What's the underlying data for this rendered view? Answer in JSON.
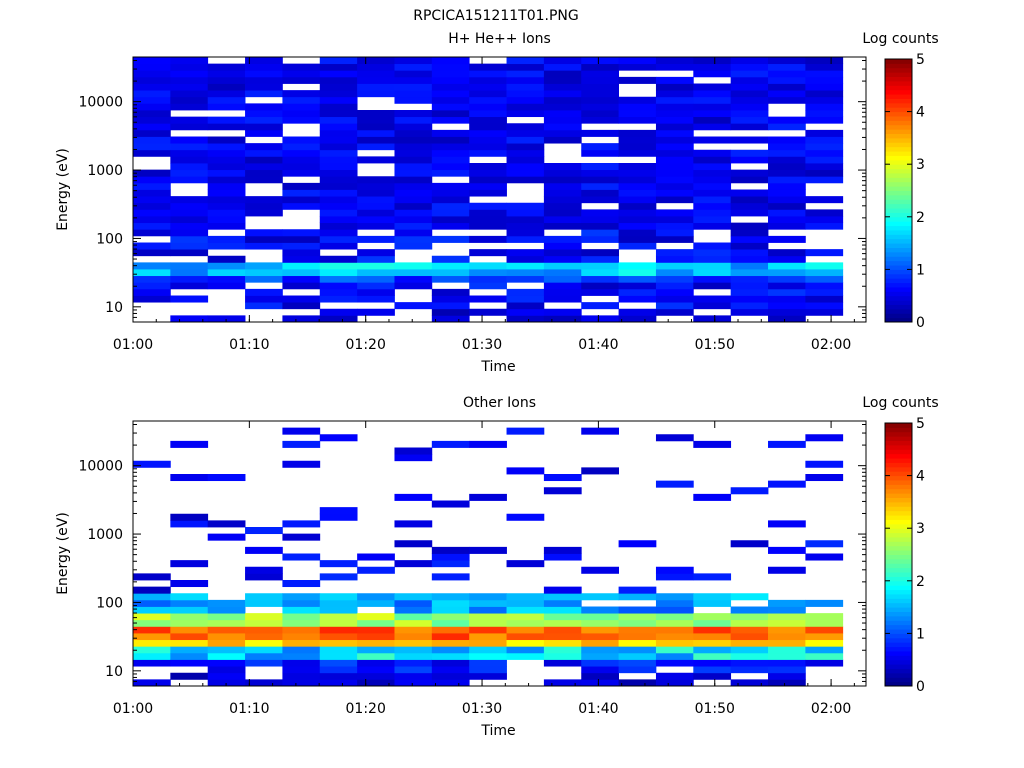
{
  "figure": {
    "title": "RPCICA151211T01.PNG"
  },
  "chart_data": [
    {
      "type": "heatmap",
      "title": "H+ He++ Ions",
      "xlabel": "Time",
      "ylabel": "Energy (eV)",
      "yscale": "log",
      "ylim": [
        6,
        45000
      ],
      "xlim": [
        "01:00",
        "02:03"
      ],
      "x_ticks": [
        "01:00",
        "01:10",
        "01:20",
        "01:30",
        "01:40",
        "01:50",
        "02:00"
      ],
      "y_ticks": [
        "10",
        "100",
        "1000",
        "10000"
      ],
      "colorbar": {
        "label": "Log counts",
        "range": [
          0,
          5
        ],
        "ticks": [
          "0",
          "1",
          "2",
          "3",
          "4",
          "5"
        ]
      },
      "time_bins": 19,
      "energy_bins": 40,
      "energy_edges_eV": [
        6,
        45000
      ],
      "bands": [
        {
          "e_min": 6,
          "e_max": 10,
          "fill": 0.55,
          "level": [
            0.25,
            0.6
          ]
        },
        {
          "e_min": 10,
          "e_max": 22,
          "fill": 0.7,
          "level": [
            0.3,
            0.9
          ]
        },
        {
          "e_min": 22,
          "e_max": 30,
          "fill": 1.0,
          "level": [
            0.6,
            1.2
          ]
        },
        {
          "e_min": 30,
          "e_max": 45,
          "fill": 1.0,
          "level": [
            1.2,
            2.0
          ]
        },
        {
          "e_min": 45,
          "e_max": 150,
          "fill": 0.7,
          "level": [
            0.3,
            0.9
          ]
        },
        {
          "e_min": 150,
          "e_max": 45000,
          "fill": 0.85,
          "level": [
            0.3,
            0.8
          ]
        }
      ]
    },
    {
      "type": "heatmap",
      "title": "Other Ions",
      "xlabel": "Time",
      "ylabel": "Energy (eV)",
      "yscale": "log",
      "ylim": [
        6,
        45000
      ],
      "xlim": [
        "01:00",
        "02:03"
      ],
      "x_ticks": [
        "01:00",
        "01:10",
        "01:20",
        "01:30",
        "01:40",
        "01:50",
        "02:00"
      ],
      "y_ticks": [
        "10",
        "100",
        "1000",
        "10000"
      ],
      "colorbar": {
        "label": "Log counts",
        "range": [
          0,
          5
        ],
        "ticks": [
          "0",
          "1",
          "2",
          "3",
          "4",
          "5"
        ]
      },
      "time_bins": 19,
      "energy_bins": 40,
      "energy_edges_eV": [
        6,
        45000
      ],
      "bands": [
        {
          "e_min": 6,
          "e_max": 10,
          "fill": 0.6,
          "level": [
            0.2,
            0.6
          ]
        },
        {
          "e_min": 10,
          "e_max": 16,
          "fill": 0.75,
          "level": [
            0.4,
            1.0
          ]
        },
        {
          "e_min": 16,
          "e_max": 22,
          "fill": 1.0,
          "level": [
            1.2,
            2.2
          ]
        },
        {
          "e_min": 22,
          "e_max": 30,
          "fill": 1.0,
          "level": [
            3.0,
            3.6
          ]
        },
        {
          "e_min": 30,
          "e_max": 45,
          "fill": 1.0,
          "level": [
            3.6,
            4.2
          ]
        },
        {
          "e_min": 45,
          "e_max": 70,
          "fill": 1.0,
          "level": [
            2.3,
            3.0
          ]
        },
        {
          "e_min": 70,
          "e_max": 150,
          "fill": 0.85,
          "level": [
            1.0,
            1.8
          ]
        },
        {
          "e_min": 150,
          "e_max": 800,
          "fill": 0.3,
          "level": [
            0.3,
            0.9
          ]
        },
        {
          "e_min": 800,
          "e_max": 45000,
          "fill": 0.12,
          "level": [
            0.3,
            0.8
          ]
        }
      ]
    }
  ]
}
